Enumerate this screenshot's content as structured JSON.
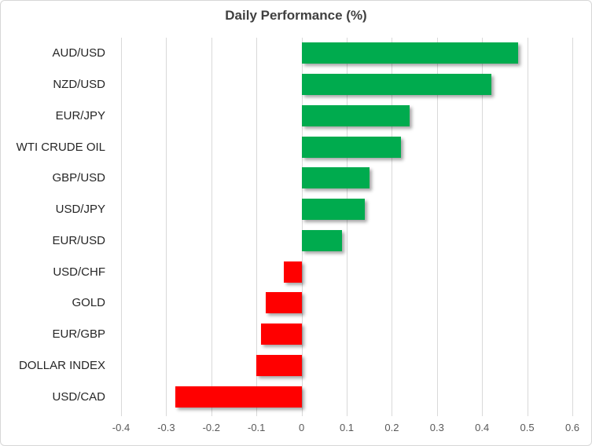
{
  "chart_data": {
    "type": "bar",
    "orientation": "horizontal",
    "title": "Daily Performance (%)",
    "categories": [
      "AUD/USD",
      "NZD/USD",
      "EUR/JPY",
      "WTI CRUDE OIL",
      "GBP/USD",
      "USD/JPY",
      "EUR/USD",
      "USD/CHF",
      "GOLD",
      "EUR/GBP",
      "DOLLAR INDEX",
      "USD/CAD"
    ],
    "values": [
      0.48,
      0.42,
      0.24,
      0.22,
      0.15,
      0.14,
      0.09,
      -0.04,
      -0.08,
      -0.09,
      -0.1,
      -0.28
    ],
    "xlim": [
      -0.4,
      0.6
    ],
    "x_tick_labels": [
      "-0.4",
      "-0.3",
      "-0.2",
      "-0.1",
      "0",
      "0.1",
      "0.2",
      "0.3",
      "0.4",
      "0.5",
      "0.6"
    ],
    "x_tick_values": [
      -0.4,
      -0.3,
      -0.2,
      -0.1,
      0,
      0.1,
      0.2,
      0.3,
      0.4,
      0.5,
      0.6
    ],
    "grid": true,
    "legend": false,
    "xlabel": "",
    "ylabel": "",
    "colors": {
      "positive": "#00AB4E",
      "negative": "#FF0000",
      "gridline": "#D9D9D9",
      "tick_label": "#595959",
      "category_label": "#262626",
      "title": "#404040"
    }
  }
}
